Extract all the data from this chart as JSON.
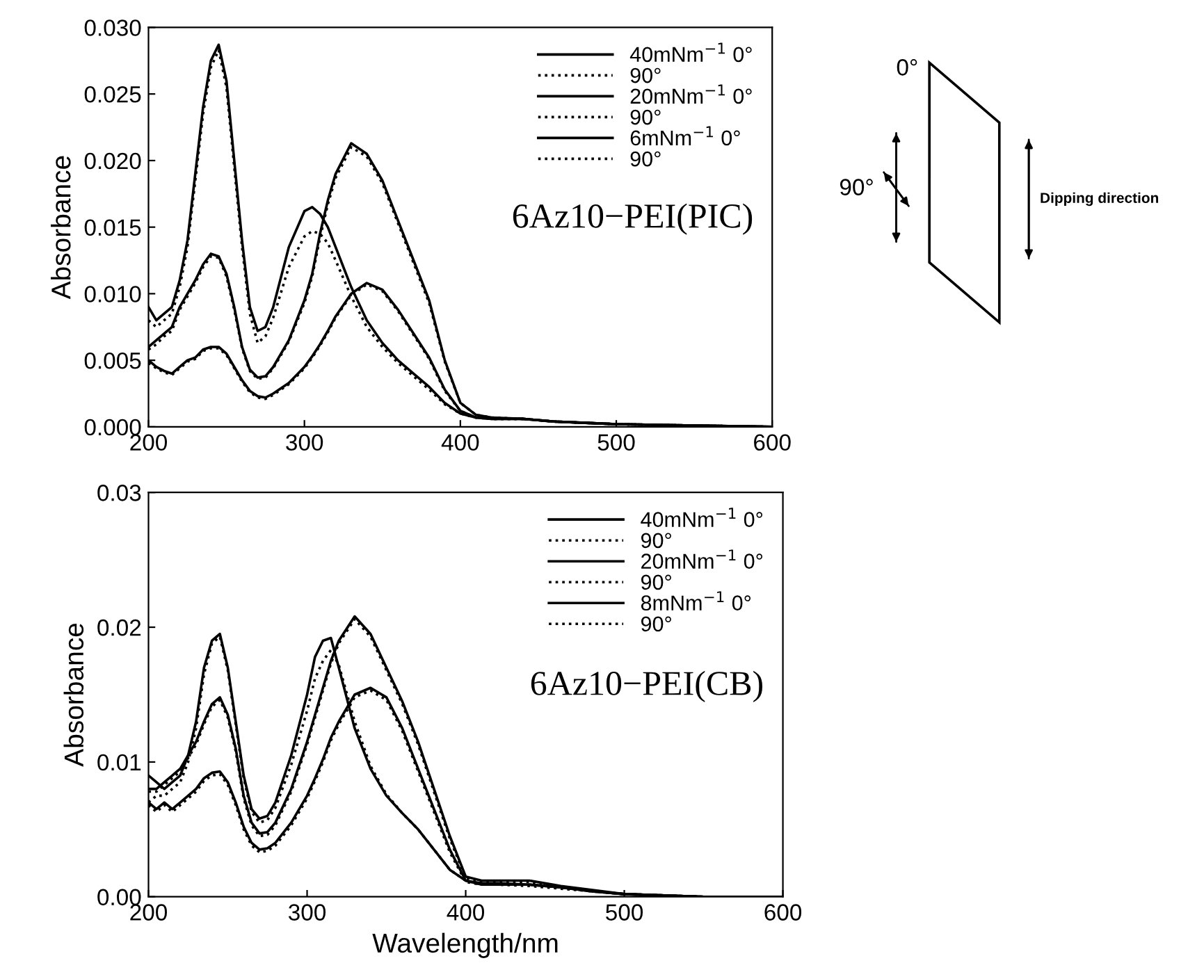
{
  "chart_data": [
    {
      "type": "line",
      "ylabel": "Absorbance",
      "annotations": [
        "6Az10−PEI(PIC)"
      ],
      "legend": "top right",
      "grid": false,
      "x": [
        200,
        205,
        210,
        215,
        220,
        225,
        230,
        235,
        240,
        245,
        250,
        255,
        260,
        265,
        270,
        275,
        280,
        290,
        300,
        305,
        310,
        315,
        320,
        330,
        340,
        350,
        360,
        370,
        380,
        390,
        400,
        410,
        420,
        440,
        460,
        480,
        500,
        550,
        600
      ],
      "xlim": [
        200,
        600
      ],
      "xticks": [
        200,
        300,
        400,
        500,
        600
      ],
      "ylim": [
        0,
        0.03
      ],
      "yticks": [
        {
          "value": 0,
          "label": "0.000"
        },
        {
          "value": 0.005,
          "label": "0.005"
        },
        {
          "value": 0.01,
          "label": "0.010"
        },
        {
          "value": 0.015,
          "label": "0.015"
        },
        {
          "value": 0.02,
          "label": "0.020"
        },
        {
          "value": 0.025,
          "label": "0.025"
        },
        {
          "value": 0.03,
          "label": "0.030"
        }
      ],
      "series": [
        {
          "name": "40mNm$^{−1}$ 0°",
          "color": "#000000",
          "line_style": "solid",
          "values": [
            0.009,
            0.008,
            0.0085,
            0.009,
            0.011,
            0.014,
            0.019,
            0.024,
            0.0275,
            0.0287,
            0.026,
            0.02,
            0.014,
            0.009,
            0.0072,
            0.0075,
            0.009,
            0.0135,
            0.0162,
            0.0165,
            0.016,
            0.015,
            0.0135,
            0.0105,
            0.008,
            0.0063,
            0.005,
            0.004,
            0.003,
            0.0018,
            0.001,
            0.0007,
            0.0006,
            0.0006,
            0.0004,
            0.0003,
            0.0002,
            0.0001,
            0.0
          ]
        },
        {
          "name": "90°",
          "color": "#000000",
          "line_style": "dotted",
          "values": [
            0.008,
            0.0075,
            0.008,
            0.0085,
            0.0105,
            0.0135,
            0.0185,
            0.0235,
            0.027,
            0.0283,
            0.0255,
            0.0195,
            0.0135,
            0.0085,
            0.0063,
            0.0068,
            0.0082,
            0.012,
            0.0143,
            0.0147,
            0.0145,
            0.0138,
            0.0125,
            0.0098,
            0.0075,
            0.006,
            0.0048,
            0.0038,
            0.0028,
            0.0017,
            0.001,
            0.0007,
            0.0006,
            0.0006,
            0.0004,
            0.0003,
            0.0002,
            0.0001,
            0.0
          ]
        },
        {
          "name": "20mNm$^{−1}$ 0°",
          "color": "#000000",
          "line_style": "solid",
          "values": [
            0.006,
            0.0065,
            0.007,
            0.0075,
            0.009,
            0.01,
            0.011,
            0.0122,
            0.013,
            0.0128,
            0.0115,
            0.009,
            0.006,
            0.0043,
            0.0037,
            0.0038,
            0.0045,
            0.0065,
            0.0095,
            0.0115,
            0.0145,
            0.017,
            0.019,
            0.0213,
            0.0205,
            0.0185,
            0.0155,
            0.0125,
            0.0095,
            0.005,
            0.0018,
            0.0009,
            0.0007,
            0.0006,
            0.0004,
            0.0003,
            0.0002,
            0.0001,
            0.0
          ]
        },
        {
          "name": "90°",
          "color": "#000000",
          "line_style": "dotted",
          "values": [
            0.0058,
            0.0062,
            0.0068,
            0.0072,
            0.0088,
            0.0098,
            0.0108,
            0.012,
            0.0128,
            0.0127,
            0.0113,
            0.0088,
            0.0059,
            0.0042,
            0.0036,
            0.0037,
            0.0044,
            0.0064,
            0.0093,
            0.0113,
            0.0142,
            0.0167,
            0.0187,
            0.021,
            0.0203,
            0.0183,
            0.0153,
            0.0123,
            0.0093,
            0.0049,
            0.0018,
            0.0009,
            0.0007,
            0.0006,
            0.0004,
            0.0003,
            0.0002,
            0.0001,
            0.0
          ]
        },
        {
          "name": "6mNm$^{−1}$ 0°",
          "color": "#000000",
          "line_style": "solid",
          "values": [
            0.005,
            0.0045,
            0.0042,
            0.004,
            0.0045,
            0.005,
            0.0052,
            0.0058,
            0.006,
            0.006,
            0.0055,
            0.0045,
            0.0035,
            0.0027,
            0.0023,
            0.0022,
            0.0025,
            0.0033,
            0.0045,
            0.0053,
            0.0062,
            0.0072,
            0.0083,
            0.01,
            0.0108,
            0.0103,
            0.0088,
            0.007,
            0.0052,
            0.0028,
            0.0012,
            0.0007,
            0.0006,
            0.0006,
            0.0004,
            0.0003,
            0.0002,
            0.0001,
            0.0
          ]
        },
        {
          "name": "90°",
          "color": "#000000",
          "line_style": "dotted",
          "values": [
            0.0048,
            0.0044,
            0.0041,
            0.0039,
            0.0044,
            0.0049,
            0.0051,
            0.0057,
            0.0059,
            0.0059,
            0.0054,
            0.0044,
            0.0034,
            0.0026,
            0.0022,
            0.0021,
            0.0024,
            0.0032,
            0.0044,
            0.0052,
            0.0061,
            0.0071,
            0.0082,
            0.0099,
            0.0107,
            0.0102,
            0.0087,
            0.0069,
            0.0051,
            0.0027,
            0.0012,
            0.0007,
            0.0006,
            0.0006,
            0.0004,
            0.0003,
            0.0002,
            0.0001,
            0.0
          ]
        }
      ]
    },
    {
      "type": "line",
      "xlabel": "Wavelength/nm",
      "ylabel": "Absorbance",
      "annotations": [
        "6Az10−PEI(CB)"
      ],
      "legend": "top right",
      "grid": false,
      "x": [
        200,
        205,
        210,
        215,
        220,
        225,
        230,
        235,
        240,
        245,
        250,
        255,
        260,
        265,
        270,
        275,
        280,
        290,
        300,
        305,
        310,
        315,
        320,
        330,
        340,
        350,
        360,
        370,
        380,
        390,
        400,
        410,
        420,
        440,
        460,
        480,
        500,
        550,
        600
      ],
      "xlim": [
        200,
        600
      ],
      "xticks": [
        200,
        300,
        400,
        500,
        600
      ],
      "ylim": [
        0,
        0.03
      ],
      "yticks": [
        {
          "value": 0,
          "label": "0.00"
        },
        {
          "value": 0.01,
          "label": "0.01"
        },
        {
          "value": 0.02,
          "label": "0.02"
        },
        {
          "value": 0.03,
          "label": "0.03"
        }
      ],
      "series": [
        {
          "name": "40mNm$^{−1}$ 0°",
          "color": "#000000",
          "line_style": "solid",
          "values": [
            0.009,
            0.0085,
            0.008,
            0.0085,
            0.009,
            0.0105,
            0.013,
            0.017,
            0.019,
            0.0195,
            0.017,
            0.013,
            0.009,
            0.0065,
            0.0058,
            0.006,
            0.007,
            0.0105,
            0.015,
            0.0178,
            0.019,
            0.0192,
            0.017,
            0.0125,
            0.0095,
            0.0075,
            0.0062,
            0.005,
            0.0035,
            0.002,
            0.0012,
            0.0009,
            0.0009,
            0.0009,
            0.0007,
            0.0004,
            0.0002,
            0.0,
            0.0
          ]
        },
        {
          "name": "90°",
          "color": "#000000",
          "line_style": "dotted",
          "values": [
            0.007,
            0.0075,
            0.0075,
            0.008,
            0.0085,
            0.01,
            0.0125,
            0.0165,
            0.0188,
            0.0193,
            0.0168,
            0.0128,
            0.0088,
            0.0063,
            0.0055,
            0.0057,
            0.0066,
            0.0098,
            0.0138,
            0.0162,
            0.0175,
            0.0183,
            0.0172,
            0.013,
            0.0097,
            0.0076,
            0.0062,
            0.005,
            0.0035,
            0.002,
            0.0012,
            0.0009,
            0.0009,
            0.0009,
            0.0007,
            0.0004,
            0.0002,
            0.0,
            0.0
          ]
        },
        {
          "name": "20mNm$^{−1}$ 0°",
          "color": "#000000",
          "line_style": "solid",
          "values": [
            0.008,
            0.008,
            0.0085,
            0.009,
            0.0095,
            0.0105,
            0.0115,
            0.013,
            0.0143,
            0.0148,
            0.0135,
            0.011,
            0.0075,
            0.0055,
            0.0047,
            0.0048,
            0.0055,
            0.008,
            0.0115,
            0.0135,
            0.0155,
            0.0175,
            0.019,
            0.0208,
            0.0195,
            0.017,
            0.0145,
            0.0115,
            0.008,
            0.0045,
            0.0015,
            0.0012,
            0.0012,
            0.0012,
            0.0008,
            0.0005,
            0.0002,
            0.0,
            0.0
          ]
        },
        {
          "name": "90°",
          "color": "#000000",
          "line_style": "dotted",
          "values": [
            0.0078,
            0.0078,
            0.0083,
            0.0088,
            0.0093,
            0.0103,
            0.0113,
            0.0128,
            0.0141,
            0.0146,
            0.0133,
            0.0108,
            0.0073,
            0.0053,
            0.0045,
            0.0046,
            0.0053,
            0.0078,
            0.0113,
            0.0133,
            0.0153,
            0.0173,
            0.0188,
            0.0206,
            0.0193,
            0.0168,
            0.0143,
            0.0113,
            0.0078,
            0.0043,
            0.0014,
            0.0011,
            0.0011,
            0.0011,
            0.0007,
            0.0004,
            0.0002,
            0.0,
            0.0
          ]
        },
        {
          "name": "8mNm$^{−1}$ 0°",
          "color": "#000000",
          "line_style": "solid",
          "values": [
            0.007,
            0.0065,
            0.007,
            0.0065,
            0.007,
            0.0075,
            0.008,
            0.0088,
            0.0092,
            0.0093,
            0.0085,
            0.007,
            0.0052,
            0.004,
            0.0035,
            0.0036,
            0.004,
            0.0055,
            0.0075,
            0.0088,
            0.0102,
            0.0118,
            0.013,
            0.015,
            0.0155,
            0.0148,
            0.0125,
            0.0095,
            0.0065,
            0.0035,
            0.0012,
            0.001,
            0.001,
            0.0009,
            0.0007,
            0.0004,
            0.0002,
            0.0,
            0.0
          ]
        },
        {
          "name": "90°",
          "color": "#000000",
          "line_style": "dotted",
          "values": [
            0.0068,
            0.0063,
            0.0068,
            0.0063,
            0.0068,
            0.0073,
            0.0078,
            0.0086,
            0.009,
            0.0091,
            0.0083,
            0.0068,
            0.005,
            0.0038,
            0.0033,
            0.0034,
            0.0038,
            0.0053,
            0.0073,
            0.0086,
            0.01,
            0.0116,
            0.0128,
            0.0148,
            0.0153,
            0.0146,
            0.0123,
            0.0093,
            0.0063,
            0.0033,
            0.0011,
            0.0009,
            0.0009,
            0.0008,
            0.0006,
            0.0004,
            0.0002,
            0.0,
            0.0
          ]
        }
      ]
    },
    {
      "type": "other",
      "annotations": [
        "0°",
        "90°",
        "Dipping direction"
      ]
    }
  ]
}
